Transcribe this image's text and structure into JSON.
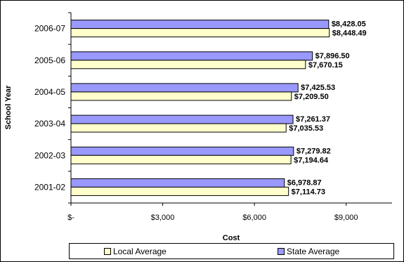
{
  "chart_data": {
    "type": "bar",
    "orientation": "horizontal",
    "categories": [
      "2006-07",
      "2005-06",
      "2004-05",
      "2003-04",
      "2002-03",
      "2001-02"
    ],
    "series": [
      {
        "name": "Local Average",
        "values": [
          8448.49,
          7670.15,
          7209.5,
          7035.53,
          7194.64,
          7114.73
        ],
        "labels": [
          "$8,448.49",
          "$7,670.15",
          "$7,209.50",
          "$7,035.53",
          "$7,194.64",
          "$7,114.73"
        ],
        "color": "#ffffcc"
      },
      {
        "name": "State Average",
        "values": [
          8428.05,
          7896.5,
          7425.53,
          7261.37,
          7279.82,
          6978.87
        ],
        "labels": [
          "$8,428.05",
          "$7,896.50",
          "$7,425.53",
          "$7,261.37",
          "$7,279.82",
          "$6,978.87"
        ],
        "color": "#9999ff"
      }
    ],
    "xlabel": "Cost",
    "ylabel": "School Year",
    "xlim": [
      0,
      10500
    ],
    "xticks": [
      0,
      3000,
      6000,
      9000
    ],
    "xtick_labels": [
      "$-",
      "$3,000",
      "$6,000",
      "$9,000"
    ],
    "grid": false,
    "legend_position": "bottom"
  }
}
